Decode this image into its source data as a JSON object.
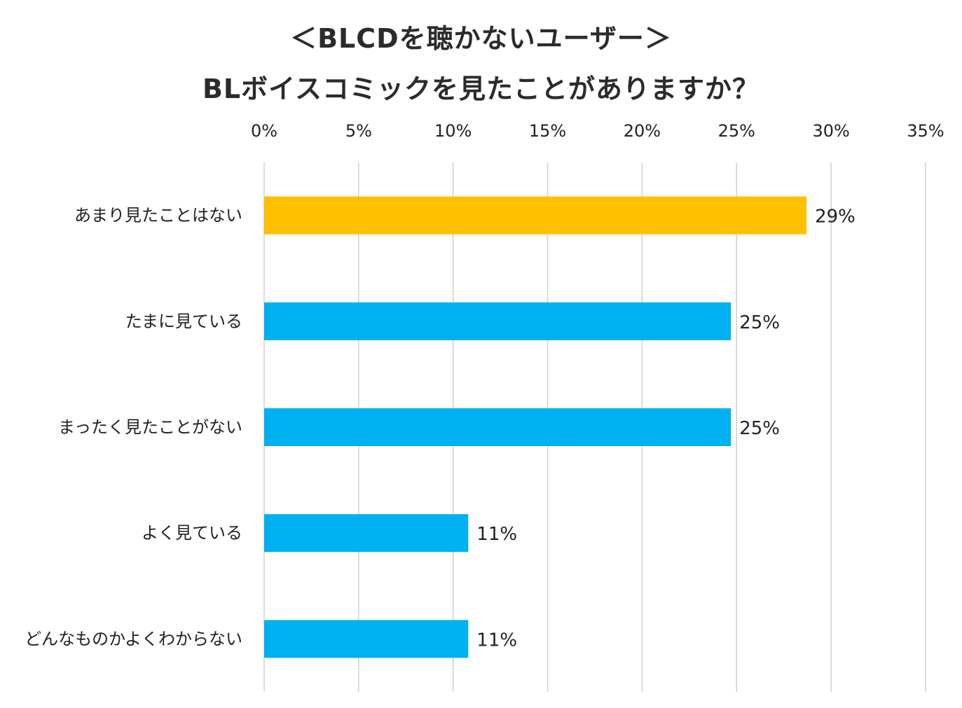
{
  "chart_data": {
    "type": "bar",
    "orientation": "horizontal",
    "title": "＜BLCDを聴かないユーザー＞",
    "subtitle": "BLボイスコミックを見たことがありますか？",
    "categories": [
      "あまり見たことはない",
      "たまに見ている",
      "まったく見たことがない",
      "よく見ている",
      "どんなものかよくわからない"
    ],
    "values": [
      28.7,
      24.7,
      24.7,
      10.8,
      10.8
    ],
    "data_labels": [
      "29%",
      "25%",
      "25%",
      "11%",
      "11%"
    ],
    "bar_colors": [
      "#FFC000",
      "#00B0F0",
      "#00B0F0",
      "#00B0F0",
      "#00B0F0"
    ],
    "xlim": [
      0,
      35
    ],
    "xticks": [
      0,
      5,
      10,
      15,
      20,
      25,
      30,
      35
    ],
    "xtick_labels": [
      "0%",
      "5%",
      "10%",
      "15%",
      "20%",
      "25%",
      "30%",
      "35%"
    ],
    "axis_position": "top",
    "grid": true,
    "legend": "none",
    "xlabel": "",
    "ylabel": ""
  }
}
